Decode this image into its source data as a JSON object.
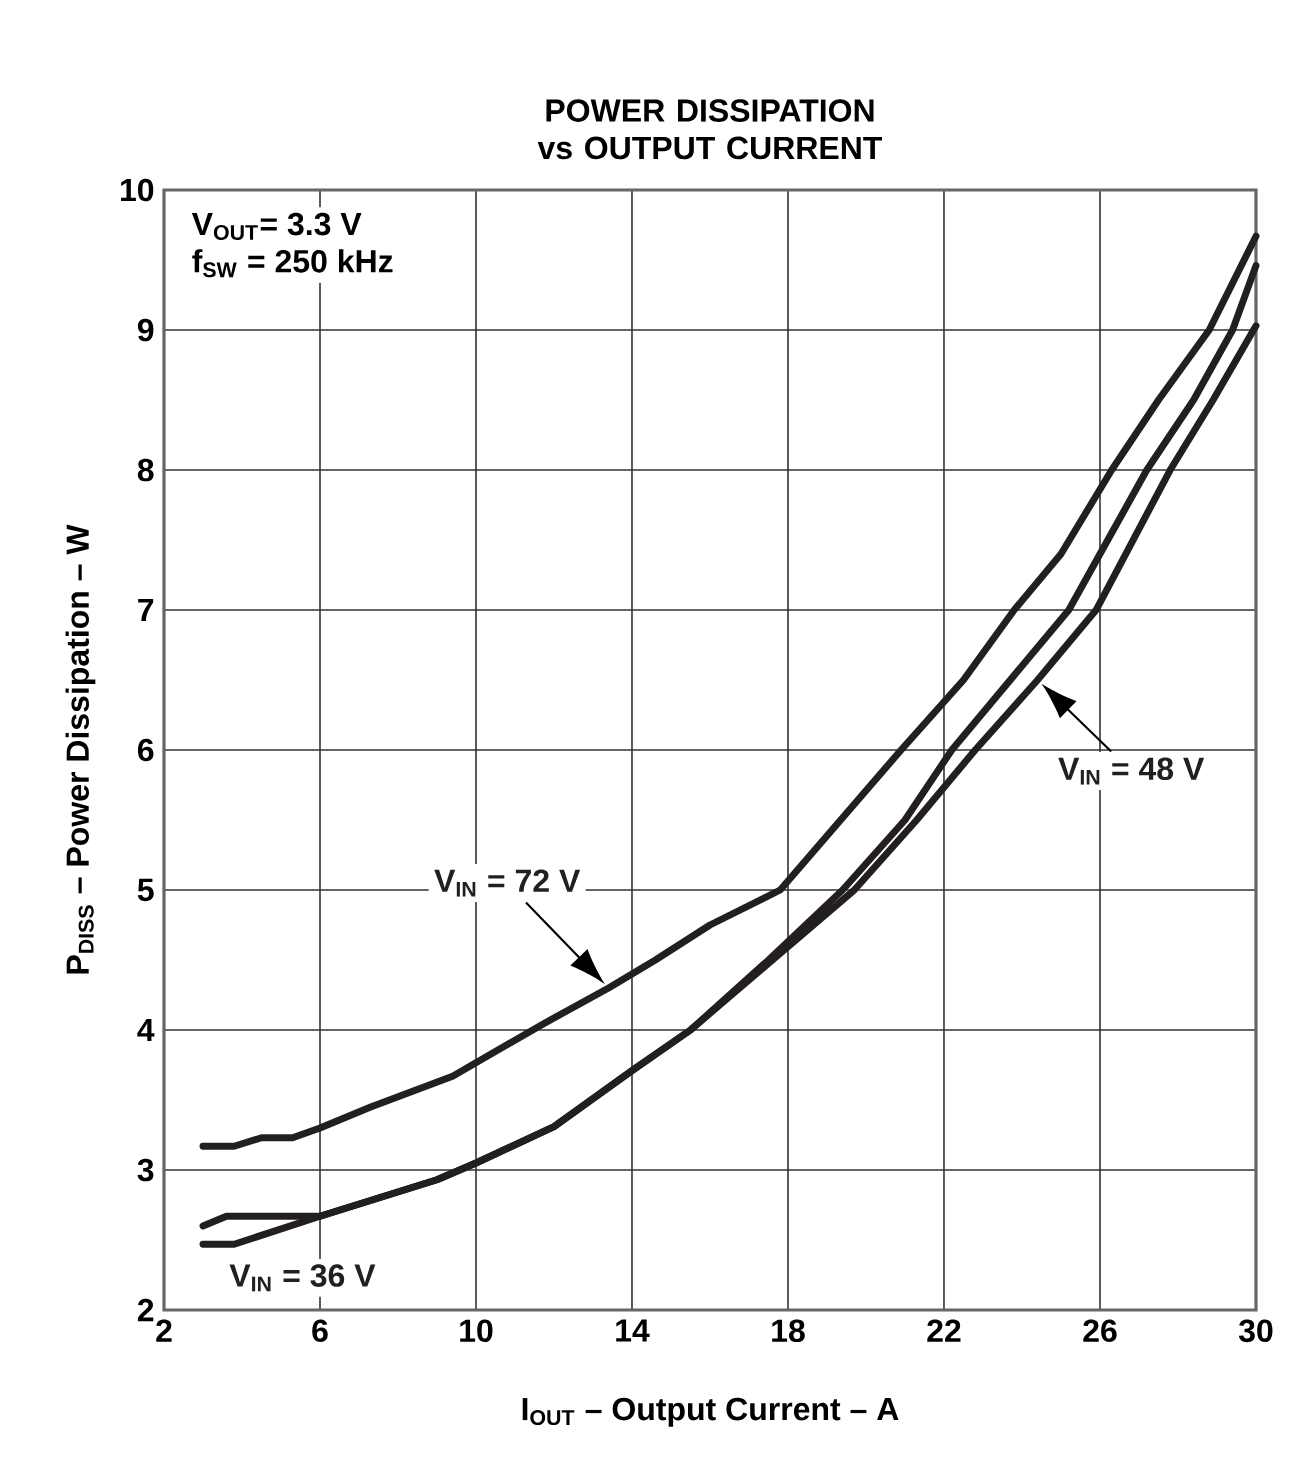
{
  "chart_data": {
    "type": "line",
    "title": "POWER DISSIPATION vs OUTPUT CURRENT",
    "xlabel": "I$_{OUT}$ – Output Current – A",
    "ylabel": "P$_{DISS}$ – Power Dissipation – W",
    "annotations": [
      "V$_{OUT}$= 3.3 V",
      "f$_{SW}$ = 250 kHz"
    ],
    "xlim": [
      2,
      30
    ],
    "ylim": [
      2,
      10
    ],
    "xticks": [
      2,
      6,
      10,
      14,
      18,
      22,
      26,
      30
    ],
    "yticks": [
      2,
      3,
      4,
      5,
      6,
      7,
      8,
      9,
      10
    ],
    "grid": true,
    "legend": false,
    "marker": "none",
    "line_style": "solid",
    "series": [
      {
        "name": "V$_{IN}$ = 72 V",
        "color": "#231f20",
        "x": [
          3,
          3.8,
          4.5,
          5.3,
          6,
          7.3,
          9.4,
          11.7,
          13.4,
          14.6,
          16,
          17.8,
          20.9,
          22.5,
          23.8,
          25,
          26.3,
          27.5,
          28.8,
          30
        ],
        "values": [
          3.17,
          3.17,
          3.23,
          3.23,
          3.3,
          3.45,
          3.67,
          4.04,
          4.3,
          4.5,
          4.75,
          5.0,
          6.0,
          6.5,
          7.0,
          7.4,
          8.0,
          8.5,
          9.0,
          9.67
        ]
      },
      {
        "name": "V$_{IN}$ = 36 V",
        "color": "#231f20",
        "x": [
          3,
          3.8,
          6,
          9,
          10,
          12,
          14,
          15.5,
          17.5,
          19.4,
          21,
          22.2,
          23.7,
          25.2,
          26.2,
          27.2,
          28.4,
          29.4,
          30
        ],
        "values": [
          2.47,
          2.47,
          2.67,
          2.93,
          3.05,
          3.31,
          3.71,
          4.0,
          4.5,
          5.0,
          5.5,
          6.0,
          6.5,
          7.0,
          7.5,
          8.0,
          8.5,
          9.0,
          9.46
        ]
      },
      {
        "name": "V$_{IN}$ = 48 V",
        "color": "#231f20",
        "x": [
          3,
          3.6,
          6,
          9,
          10,
          12,
          14,
          15.5,
          17.6,
          19.7,
          21.3,
          22.8,
          24.4,
          25.9,
          27.8,
          28.9,
          30
        ],
        "values": [
          2.6,
          2.67,
          2.67,
          2.93,
          3.05,
          3.31,
          3.71,
          4.0,
          4.5,
          5.0,
          5.5,
          6.0,
          6.5,
          7.0,
          8.0,
          8.5,
          9.03
        ]
      }
    ]
  }
}
